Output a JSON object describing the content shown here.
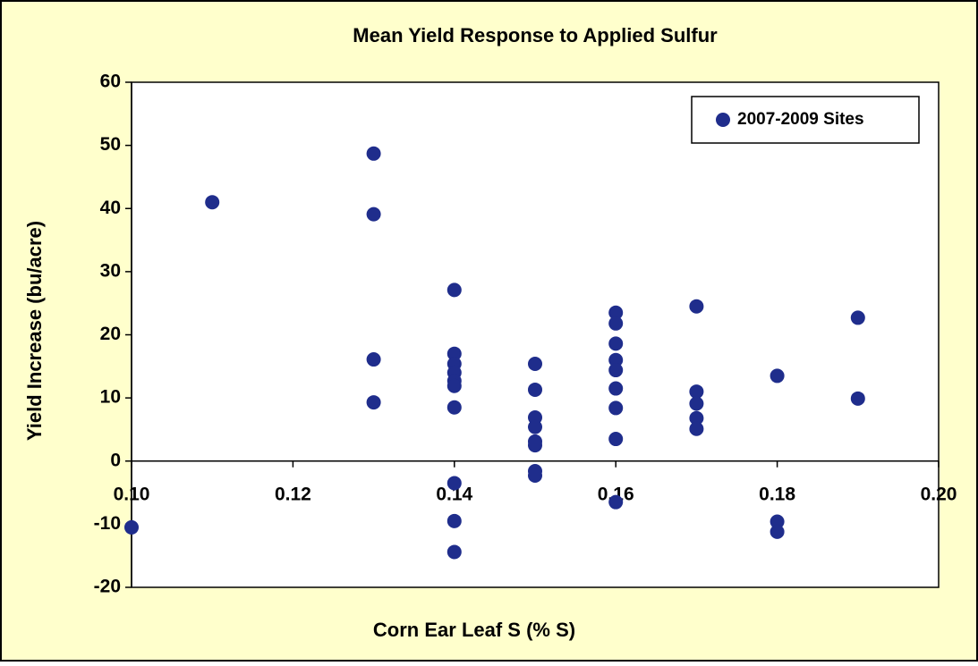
{
  "chart_data": {
    "type": "scatter",
    "title": "Mean Yield Response to Applied Sulfur",
    "x_label": "Corn Ear Leaf S (% S)",
    "y_label": "Yield Increase (bu/acre)",
    "series": [
      {
        "name": "2007-2009 Sites",
        "color": "#1f2d8c",
        "x": [
          0.1,
          0.11,
          0.13,
          0.13,
          0.13,
          0.13,
          0.14,
          0.14,
          0.14,
          0.14,
          0.14,
          0.14,
          0.14,
          0.14,
          0.14,
          0.14,
          0.15,
          0.15,
          0.15,
          0.15,
          0.15,
          0.15,
          0.15,
          0.15,
          0.16,
          0.16,
          0.16,
          0.16,
          0.16,
          0.16,
          0.16,
          0.16,
          0.16,
          0.17,
          0.17,
          0.17,
          0.17,
          0.17,
          0.18,
          0.18,
          0.18,
          0.19,
          0.19
        ],
        "values": [
          -10.5,
          41,
          48.7,
          39.1,
          16.1,
          9.3,
          27.1,
          17,
          15.4,
          14,
          12.7,
          11.9,
          8.5,
          -3.5,
          -9.5,
          -14.4,
          15.4,
          11.3,
          6.9,
          5.4,
          3.1,
          2.5,
          -1.6,
          -2.3,
          23.5,
          21.8,
          18.6,
          16,
          14.4,
          11.5,
          8.4,
          3.5,
          -6.5,
          24.5,
          11,
          9.1,
          6.8,
          5.1,
          13.5,
          -9.6,
          -11.2,
          22.7,
          9.9
        ]
      }
    ],
    "xlim": [
      0.1,
      0.2
    ],
    "xticks": [
      {
        "value": 0.1,
        "label": "0.10"
      },
      0.12,
      0.14,
      0.16,
      0.18,
      {
        "value": 0.2,
        "label": "0.20"
      }
    ],
    "ylim": [
      -20,
      60
    ],
    "yticks": [
      -20,
      -10,
      0,
      10,
      20,
      30,
      40,
      50,
      60
    ],
    "legend": "top-right",
    "grid": false
  }
}
